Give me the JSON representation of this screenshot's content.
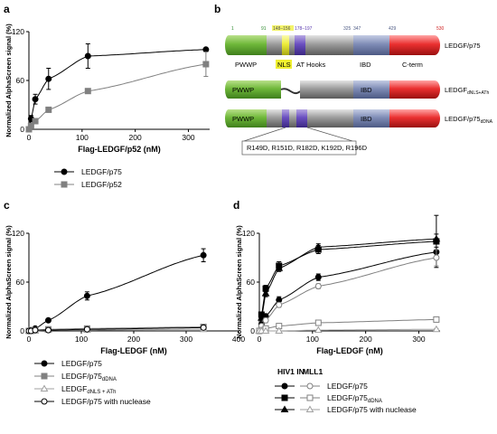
{
  "panels": {
    "a": {
      "letter": "a"
    },
    "b": {
      "letter": "b"
    },
    "c": {
      "letter": "c"
    },
    "d": {
      "letter": "d"
    }
  },
  "diagram": {
    "residue_numbers": [
      "1",
      "91",
      "148–156",
      "178–197",
      "325",
      "347",
      "429",
      "530"
    ],
    "domains": [
      "PWWP",
      "NLS",
      "AT Hooks",
      "IBD",
      "C-term"
    ],
    "rows": [
      {
        "base": "LEDGF/p75",
        "sub": ""
      },
      {
        "base": "LEDGF",
        "sub": "dNLS+ATh"
      },
      {
        "base": "LEDGF/p75",
        "sub": "dDNA"
      }
    ],
    "mutations": "R149D, R151D, R182D, K192D, R196D"
  },
  "legend_d_headers": {
    "hiv": "HIV1 IN",
    "mll": "MLL1"
  },
  "chart_data": [
    {
      "panel": "a",
      "type": "scatter",
      "xlabel": "Flag-LEDGF/p52 (nM)",
      "ylabel": "Normalized AlphaScreen signal (%)",
      "xlim": [
        0,
        340
      ],
      "ylim": [
        0,
        120
      ],
      "xticks": [
        0,
        100,
        200,
        300
      ],
      "yticks": [
        0,
        60,
        120
      ],
      "series": [
        {
          "name": "LEDGF/p75",
          "marker": "circle-filled",
          "color": "#000000",
          "x": [
            0,
            4,
            12,
            37,
            111,
            333
          ],
          "y": [
            0,
            13,
            37,
            62,
            90,
            98
          ],
          "err": [
            0,
            4,
            6,
            13,
            15,
            0
          ]
        },
        {
          "name": "LEDGF/p52",
          "marker": "square-filled",
          "color": "#808080",
          "x": [
            0,
            4,
            12,
            37,
            111,
            333
          ],
          "y": [
            0,
            4,
            10,
            24,
            47,
            80
          ],
          "err": [
            0,
            1,
            2,
            3,
            3,
            15
          ]
        }
      ]
    },
    {
      "panel": "c",
      "type": "scatter",
      "xlabel": "Flag-LEDGF (nM)",
      "ylabel": "Normalized AlphaScreen signal (%)",
      "xlim": [
        0,
        400
      ],
      "ylim": [
        0,
        120
      ],
      "xticks": [
        0,
        100,
        200,
        300,
        400
      ],
      "yticks": [
        0,
        60,
        120
      ],
      "series": [
        {
          "name": "LEDGF/p75",
          "marker": "circle-filled",
          "color": "#000000",
          "x": [
            0,
            4,
            12,
            37,
            111,
            333
          ],
          "y": [
            0,
            1,
            3,
            13,
            43,
            93
          ],
          "err": [
            0,
            0,
            1,
            2,
            5,
            8
          ]
        },
        {
          "base": "LEDGF/p75",
          "sub": "dDNA",
          "marker": "square-filled",
          "color": "#808080",
          "x": [
            0,
            4,
            12,
            37,
            111,
            333
          ],
          "y": [
            0,
            0,
            1,
            2,
            3,
            5
          ],
          "err": [
            0,
            0,
            0,
            1,
            1,
            2
          ]
        },
        {
          "base": "LEDGF",
          "sub": "dNLS + ATh",
          "marker": "triangle-open",
          "color": "#a0a0a0",
          "x": [
            0,
            4,
            12,
            37,
            111,
            333
          ],
          "y": [
            0,
            0,
            0,
            1,
            1,
            2
          ],
          "err": [
            0,
            0,
            0,
            0,
            0,
            1
          ]
        },
        {
          "name": "LEDGF/p75 with nuclease",
          "marker": "circle-open",
          "color": "#000000",
          "x": [
            0,
            4,
            12,
            37,
            111,
            333
          ],
          "y": [
            0,
            0,
            1,
            1,
            2,
            4
          ],
          "err": [
            0,
            0,
            0,
            0,
            1,
            1
          ]
        }
      ]
    },
    {
      "panel": "d",
      "type": "scatter",
      "xlabel": "Flag-LEDGF (nM)",
      "ylabel": "Normalized AlphaScreen signal (%)",
      "xlim": [
        0,
        340
      ],
      "ylim": [
        0,
        120
      ],
      "xticks": [
        0,
        100,
        200,
        300
      ],
      "yticks": [
        0,
        60,
        120
      ],
      "series": [
        {
          "group": "HIV1 IN",
          "name": "LEDGF/p75",
          "marker": "circle-filled",
          "color": "#000000",
          "x": [
            0,
            4,
            12,
            37,
            111,
            333
          ],
          "y": [
            0,
            8,
            18,
            38,
            66,
            97
          ],
          "err": [
            0,
            2,
            3,
            4,
            4,
            6
          ]
        },
        {
          "group": "HIV1 IN",
          "base": "LEDGF/p75",
          "sub": "dDNA",
          "marker": "square-filled",
          "color": "#000000",
          "x": [
            0,
            4,
            12,
            37,
            111,
            333
          ],
          "y": [
            0,
            20,
            52,
            80,
            100,
            110
          ],
          "err": [
            0,
            3,
            4,
            5,
            5,
            32
          ]
        },
        {
          "group": "HIV1 IN",
          "name": "LEDGF/p75 with nuclease",
          "marker": "triangle-filled",
          "color": "#000000",
          "x": [
            0,
            4,
            12,
            37,
            111,
            333
          ],
          "y": [
            0,
            16,
            46,
            77,
            103,
            113
          ],
          "err": [
            0,
            3,
            4,
            4,
            4,
            6
          ]
        },
        {
          "group": "MLL1",
          "name": "LEDGF/p75",
          "marker": "circle-open",
          "color": "#808080",
          "x": [
            0,
            4,
            12,
            37,
            111,
            333
          ],
          "y": [
            0,
            6,
            13,
            32,
            55,
            90
          ],
          "err": [
            0,
            2,
            3,
            3,
            3,
            10
          ]
        },
        {
          "group": "MLL1",
          "base": "LEDGF/p75",
          "sub": "dDNA",
          "marker": "square-open",
          "color": "#808080",
          "x": [
            0,
            4,
            12,
            37,
            111,
            333
          ],
          "y": [
            0,
            1,
            3,
            6,
            10,
            14
          ],
          "err": [
            0,
            0,
            1,
            1,
            1,
            1
          ]
        },
        {
          "group": "MLL1",
          "name": "LEDGF/p75 with nuclease",
          "marker": "triangle-open",
          "color": "#a0a0a0",
          "x": [
            0,
            4,
            12,
            37,
            111,
            333
          ],
          "y": [
            0,
            0,
            0,
            0,
            1,
            2
          ],
          "err": [
            0,
            0,
            0,
            0,
            0,
            1
          ]
        }
      ]
    }
  ]
}
